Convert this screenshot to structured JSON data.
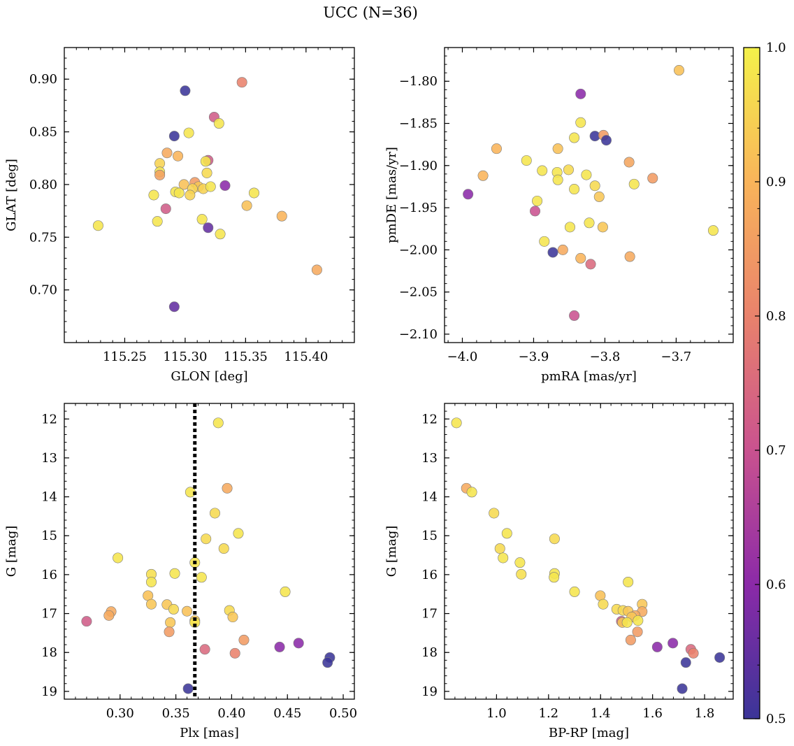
{
  "figure": {
    "title": "UCC (N=36)"
  },
  "colorbar": {
    "range": [
      0.5,
      1.0
    ],
    "ticks": [
      "0.5",
      "0.6",
      "0.7",
      "0.8",
      "0.9",
      "1.0"
    ],
    "tick_values": [
      0.5,
      0.6,
      0.7,
      0.8,
      0.9,
      1.0
    ],
    "colormap": "plasma",
    "stops": [
      "#3b3598",
      "#8b2aa8",
      "#c9528f",
      "#e9826c",
      "#f9b45a",
      "#f4f14a"
    ]
  },
  "chart_data": [
    {
      "type": "scatter",
      "xlabel": "GLON [deg]",
      "ylabel": "GLAT [deg]",
      "xlim": [
        115.2,
        115.44
      ],
      "ylim": [
        0.65,
        0.93
      ],
      "xticks": [
        115.25,
        115.3,
        115.35,
        115.4
      ],
      "xtick_labels": [
        "115.25",
        "115.30",
        "115.35",
        "115.40"
      ],
      "yticks": [
        0.7,
        0.75,
        0.8,
        0.85,
        0.9
      ],
      "ytick_labels": [
        "0.70",
        "0.75",
        "0.80",
        "0.85",
        "0.90"
      ],
      "points": [
        {
          "x": 115.3,
          "y": 0.889,
          "c": 0.5
        },
        {
          "x": 115.347,
          "y": 0.897,
          "c": 0.8
        },
        {
          "x": 115.291,
          "y": 0.846,
          "c": 0.5
        },
        {
          "x": 115.303,
          "y": 0.849,
          "c": 0.98
        },
        {
          "x": 115.324,
          "y": 0.864,
          "c": 0.72
        },
        {
          "x": 115.328,
          "y": 0.858,
          "c": 0.98
        },
        {
          "x": 115.285,
          "y": 0.83,
          "c": 0.88
        },
        {
          "x": 115.294,
          "y": 0.827,
          "c": 0.9
        },
        {
          "x": 115.279,
          "y": 0.82,
          "c": 0.95
        },
        {
          "x": 115.279,
          "y": 0.812,
          "c": 0.98
        },
        {
          "x": 115.279,
          "y": 0.809,
          "c": 0.86
        },
        {
          "x": 115.319,
          "y": 0.823,
          "c": 0.72
        },
        {
          "x": 115.317,
          "y": 0.822,
          "c": 0.98
        },
        {
          "x": 115.318,
          "y": 0.811,
          "c": 0.96
        },
        {
          "x": 115.299,
          "y": 0.8,
          "c": 0.92
        },
        {
          "x": 115.308,
          "y": 0.802,
          "c": 0.85
        },
        {
          "x": 115.311,
          "y": 0.798,
          "c": 0.93
        },
        {
          "x": 115.306,
          "y": 0.796,
          "c": 0.95
        },
        {
          "x": 115.315,
          "y": 0.796,
          "c": 0.95
        },
        {
          "x": 115.321,
          "y": 0.798,
          "c": 0.98
        },
        {
          "x": 115.333,
          "y": 0.799,
          "c": 0.6
        },
        {
          "x": 115.292,
          "y": 0.793,
          "c": 0.98
        },
        {
          "x": 115.295,
          "y": 0.792,
          "c": 0.98
        },
        {
          "x": 115.304,
          "y": 0.79,
          "c": 0.95
        },
        {
          "x": 115.274,
          "y": 0.79,
          "c": 0.98
        },
        {
          "x": 115.357,
          "y": 0.792,
          "c": 0.98
        },
        {
          "x": 115.351,
          "y": 0.78,
          "c": 0.92
        },
        {
          "x": 115.284,
          "y": 0.777,
          "c": 0.72
        },
        {
          "x": 115.277,
          "y": 0.765,
          "c": 0.98
        },
        {
          "x": 115.314,
          "y": 0.767,
          "c": 0.98
        },
        {
          "x": 115.38,
          "y": 0.77,
          "c": 0.9
        },
        {
          "x": 115.228,
          "y": 0.761,
          "c": 0.98
        },
        {
          "x": 115.319,
          "y": 0.759,
          "c": 0.55
        },
        {
          "x": 115.329,
          "y": 0.753,
          "c": 0.98
        },
        {
          "x": 115.409,
          "y": 0.719,
          "c": 0.88
        },
        {
          "x": 115.291,
          "y": 0.684,
          "c": 0.55
        }
      ]
    },
    {
      "type": "scatter",
      "xlabel": "pmRA [mas/yr]",
      "ylabel": "pmDE [mas/yr]",
      "xlim": [
        -4.025,
        -3.62
      ],
      "ylim": [
        -2.11,
        -1.76
      ],
      "xticks": [
        -4.0,
        -3.9,
        -3.8,
        -3.7
      ],
      "xtick_labels": [
        "−4.0",
        "−3.9",
        "−3.8",
        "−3.7"
      ],
      "yticks": [
        -2.1,
        -2.05,
        -2.0,
        -1.95,
        -1.9,
        -1.85,
        -1.8
      ],
      "ytick_labels": [
        "−2.10",
        "−2.05",
        "−2.00",
        "−1.95",
        "−1.90",
        "−1.85",
        "−1.80"
      ],
      "points": [
        {
          "x": -3.696,
          "y": -1.787,
          "c": 0.92
        },
        {
          "x": -3.834,
          "y": -1.815,
          "c": 0.6
        },
        {
          "x": -3.834,
          "y": -1.849,
          "c": 0.98
        },
        {
          "x": -3.843,
          "y": -1.867,
          "c": 0.98
        },
        {
          "x": -3.814,
          "y": -1.865,
          "c": 0.5
        },
        {
          "x": -3.802,
          "y": -1.864,
          "c": 0.85
        },
        {
          "x": -3.798,
          "y": -1.87,
          "c": 0.5
        },
        {
          "x": -3.952,
          "y": -1.88,
          "c": 0.9
        },
        {
          "x": -3.866,
          "y": -1.88,
          "c": 0.92
        },
        {
          "x": -3.91,
          "y": -1.894,
          "c": 0.98
        },
        {
          "x": -3.766,
          "y": -1.896,
          "c": 0.87
        },
        {
          "x": -3.888,
          "y": -1.906,
          "c": 0.98
        },
        {
          "x": -3.867,
          "y": -1.908,
          "c": 0.98
        },
        {
          "x": -3.851,
          "y": -1.905,
          "c": 0.96
        },
        {
          "x": -3.826,
          "y": -1.911,
          "c": 0.98
        },
        {
          "x": -3.971,
          "y": -1.912,
          "c": 0.9
        },
        {
          "x": -3.733,
          "y": -1.915,
          "c": 0.85
        },
        {
          "x": -3.866,
          "y": -1.917,
          "c": 0.98
        },
        {
          "x": -3.759,
          "y": -1.922,
          "c": 0.98
        },
        {
          "x": -3.814,
          "y": -1.924,
          "c": 0.96
        },
        {
          "x": -3.843,
          "y": -1.928,
          "c": 0.98
        },
        {
          "x": -3.992,
          "y": -1.934,
          "c": 0.6
        },
        {
          "x": -3.808,
          "y": -1.937,
          "c": 0.93
        },
        {
          "x": -3.895,
          "y": -1.942,
          "c": 0.98
        },
        {
          "x": -3.898,
          "y": -1.954,
          "c": 0.7
        },
        {
          "x": -3.822,
          "y": -1.968,
          "c": 0.98
        },
        {
          "x": -3.803,
          "y": -1.973,
          "c": 0.93
        },
        {
          "x": -3.849,
          "y": -1.973,
          "c": 0.98
        },
        {
          "x": -3.648,
          "y": -1.977,
          "c": 0.98
        },
        {
          "x": -3.885,
          "y": -1.99,
          "c": 0.98
        },
        {
          "x": -3.859,
          "y": -2.0,
          "c": 0.88
        },
        {
          "x": -3.873,
          "y": -2.003,
          "c": 0.5
        },
        {
          "x": -3.834,
          "y": -2.01,
          "c": 0.9
        },
        {
          "x": -3.765,
          "y": -2.008,
          "c": 0.88
        },
        {
          "x": -3.82,
          "y": -2.017,
          "c": 0.75
        },
        {
          "x": -3.843,
          "y": -2.078,
          "c": 0.7
        }
      ]
    },
    {
      "type": "scatter",
      "xlabel": "Plx [mas]",
      "ylabel": "G [mag]",
      "xlim": [
        0.25,
        0.51
      ],
      "ylim": [
        19.2,
        11.6
      ],
      "y_inverted": true,
      "vline": 0.367,
      "xticks": [
        0.3,
        0.35,
        0.4,
        0.45,
        0.5
      ],
      "xtick_labels": [
        "0.30",
        "0.35",
        "0.40",
        "0.45",
        "0.50"
      ],
      "yticks": [
        12,
        13,
        14,
        15,
        16,
        17,
        18,
        19
      ],
      "ytick_labels": [
        "12",
        "13",
        "14",
        "15",
        "16",
        "17",
        "18",
        "19"
      ],
      "points": [
        {
          "x": 0.388,
          "y": 12.1,
          "c": 0.98
        },
        {
          "x": 0.363,
          "y": 13.88,
          "c": 0.98
        },
        {
          "x": 0.396,
          "y": 13.78,
          "c": 0.88
        },
        {
          "x": 0.385,
          "y": 14.42,
          "c": 0.96
        },
        {
          "x": 0.406,
          "y": 14.94,
          "c": 0.98
        },
        {
          "x": 0.377,
          "y": 15.08,
          "c": 0.96
        },
        {
          "x": 0.393,
          "y": 15.33,
          "c": 0.96
        },
        {
          "x": 0.298,
          "y": 15.57,
          "c": 0.98
        },
        {
          "x": 0.367,
          "y": 15.69,
          "c": 0.98
        },
        {
          "x": 0.328,
          "y": 15.99,
          "c": 0.97
        },
        {
          "x": 0.349,
          "y": 15.97,
          "c": 0.98
        },
        {
          "x": 0.373,
          "y": 16.07,
          "c": 0.98
        },
        {
          "x": 0.328,
          "y": 16.19,
          "c": 0.98
        },
        {
          "x": 0.448,
          "y": 16.44,
          "c": 0.98
        },
        {
          "x": 0.325,
          "y": 16.54,
          "c": 0.92
        },
        {
          "x": 0.328,
          "y": 16.76,
          "c": 0.93
        },
        {
          "x": 0.342,
          "y": 16.77,
          "c": 0.93
        },
        {
          "x": 0.348,
          "y": 16.89,
          "c": 0.96
        },
        {
          "x": 0.36,
          "y": 16.94,
          "c": 0.92
        },
        {
          "x": 0.292,
          "y": 16.95,
          "c": 0.88
        },
        {
          "x": 0.398,
          "y": 16.92,
          "c": 0.96
        },
        {
          "x": 0.29,
          "y": 17.05,
          "c": 0.88
        },
        {
          "x": 0.401,
          "y": 17.09,
          "c": 0.93
        },
        {
          "x": 0.367,
          "y": 17.18,
          "c": 0.93
        },
        {
          "x": 0.367,
          "y": 17.23,
          "c": 0.98
        },
        {
          "x": 0.345,
          "y": 17.23,
          "c": 0.93
        },
        {
          "x": 0.27,
          "y": 17.2,
          "c": 0.72
        },
        {
          "x": 0.344,
          "y": 17.47,
          "c": 0.85
        },
        {
          "x": 0.411,
          "y": 17.68,
          "c": 0.85
        },
        {
          "x": 0.376,
          "y": 17.92,
          "c": 0.75
        },
        {
          "x": 0.403,
          "y": 18.02,
          "c": 0.8
        },
        {
          "x": 0.443,
          "y": 17.86,
          "c": 0.6
        },
        {
          "x": 0.46,
          "y": 17.76,
          "c": 0.6
        },
        {
          "x": 0.488,
          "y": 18.13,
          "c": 0.5
        },
        {
          "x": 0.486,
          "y": 18.26,
          "c": 0.5
        },
        {
          "x": 0.361,
          "y": 18.93,
          "c": 0.5
        }
      ]
    },
    {
      "type": "scatter",
      "xlabel": "BP-RP [mag]",
      "ylabel": "G [mag]",
      "xlim": [
        0.8,
        1.91
      ],
      "ylim": [
        19.2,
        11.6
      ],
      "y_inverted": true,
      "xticks": [
        1.0,
        1.2,
        1.4,
        1.6,
        1.8
      ],
      "xtick_labels": [
        "1.0",
        "1.2",
        "1.4",
        "1.6",
        "1.8"
      ],
      "yticks": [
        12,
        13,
        14,
        15,
        16,
        17,
        18,
        19
      ],
      "ytick_labels": [
        "12",
        "13",
        "14",
        "15",
        "16",
        "17",
        "18",
        "19"
      ],
      "points": [
        {
          "x": 0.846,
          "y": 12.1,
          "c": 0.98
        },
        {
          "x": 0.884,
          "y": 13.78,
          "c": 0.88
        },
        {
          "x": 0.905,
          "y": 13.88,
          "c": 0.98
        },
        {
          "x": 0.99,
          "y": 14.42,
          "c": 0.96
        },
        {
          "x": 1.04,
          "y": 14.94,
          "c": 0.98
        },
        {
          "x": 1.013,
          "y": 15.33,
          "c": 0.96
        },
        {
          "x": 1.223,
          "y": 15.08,
          "c": 0.96
        },
        {
          "x": 1.025,
          "y": 15.57,
          "c": 0.98
        },
        {
          "x": 1.09,
          "y": 15.69,
          "c": 0.98
        },
        {
          "x": 1.095,
          "y": 15.99,
          "c": 0.97
        },
        {
          "x": 1.223,
          "y": 15.97,
          "c": 0.98
        },
        {
          "x": 1.221,
          "y": 16.07,
          "c": 0.98
        },
        {
          "x": 1.506,
          "y": 16.19,
          "c": 0.98
        },
        {
          "x": 1.3,
          "y": 16.44,
          "c": 0.98
        },
        {
          "x": 1.399,
          "y": 16.54,
          "c": 0.92
        },
        {
          "x": 1.41,
          "y": 16.76,
          "c": 0.96
        },
        {
          "x": 1.56,
          "y": 16.76,
          "c": 0.93
        },
        {
          "x": 1.462,
          "y": 16.89,
          "c": 0.96
        },
        {
          "x": 1.486,
          "y": 16.92,
          "c": 0.96
        },
        {
          "x": 1.506,
          "y": 16.94,
          "c": 0.93
        },
        {
          "x": 1.56,
          "y": 16.95,
          "c": 0.88
        },
        {
          "x": 1.533,
          "y": 17.05,
          "c": 0.88
        },
        {
          "x": 1.52,
          "y": 17.09,
          "c": 0.93
        },
        {
          "x": 1.544,
          "y": 17.18,
          "c": 0.98
        },
        {
          "x": 1.48,
          "y": 17.2,
          "c": 0.72
        },
        {
          "x": 1.484,
          "y": 17.23,
          "c": 0.93
        },
        {
          "x": 1.502,
          "y": 17.23,
          "c": 0.98
        },
        {
          "x": 1.542,
          "y": 17.47,
          "c": 0.85
        },
        {
          "x": 1.516,
          "y": 17.68,
          "c": 0.85
        },
        {
          "x": 1.678,
          "y": 17.76,
          "c": 0.6
        },
        {
          "x": 1.618,
          "y": 17.86,
          "c": 0.6
        },
        {
          "x": 1.747,
          "y": 17.92,
          "c": 0.75
        },
        {
          "x": 1.757,
          "y": 18.02,
          "c": 0.8
        },
        {
          "x": 1.858,
          "y": 18.13,
          "c": 0.5
        },
        {
          "x": 1.728,
          "y": 18.26,
          "c": 0.5
        },
        {
          "x": 1.714,
          "y": 18.93,
          "c": 0.5
        }
      ]
    }
  ]
}
